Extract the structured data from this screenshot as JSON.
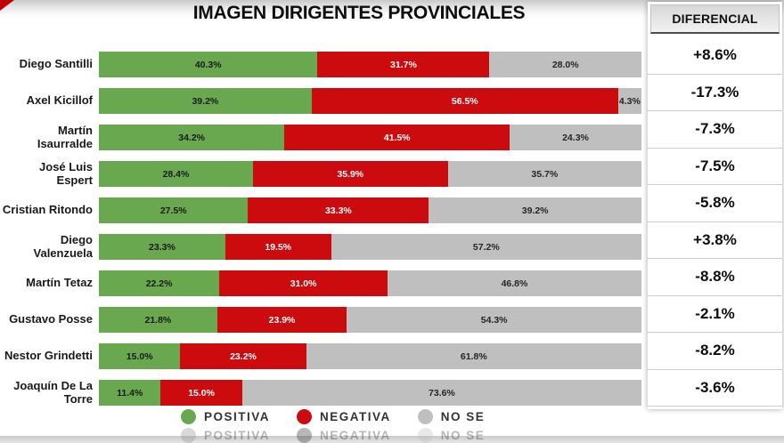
{
  "title": "IMAGEN DIRIGENTES PROVINCIALES",
  "diferencial_header": "DIFERENCIAL",
  "colors": {
    "positiva": "#6aa84f",
    "negativa": "#cc0b0e",
    "no_se": "#bfbfbf"
  },
  "legend": [
    {
      "label": "POSITIVA",
      "key": "positiva"
    },
    {
      "label": "NEGATIVA",
      "key": "negativa"
    },
    {
      "label": "NO SE",
      "key": "no_se"
    }
  ],
  "chart_data": {
    "type": "bar",
    "orientation": "horizontal",
    "stacked": true,
    "unit": "%",
    "xlim": [
      0,
      100
    ],
    "title": "IMAGEN DIRIGENTES PROVINCIALES",
    "categories": [
      "Diego Santilli",
      "Axel Kicillof",
      "Martín Isaurralde",
      "José Luis Espert",
      "Cristian Ritondo",
      "Diego Valenzuela",
      "Martín Tetaz",
      "Gustavo Posse",
      "Nestor Grindetti",
      "Joaquín De La Torre"
    ],
    "series": [
      {
        "name": "POSITIVA",
        "color": "#6aa84f",
        "label_color": "#1a1a1a",
        "values": [
          40.3,
          39.2,
          34.2,
          28.4,
          27.5,
          23.3,
          22.2,
          21.8,
          15.0,
          11.4
        ]
      },
      {
        "name": "NEGATIVA",
        "color": "#cc0b0e",
        "label_color": "#ffffff",
        "values": [
          31.7,
          56.5,
          41.5,
          35.9,
          33.3,
          19.5,
          31.0,
          23.9,
          23.2,
          15.0
        ]
      },
      {
        "name": "NO SE",
        "color": "#bfbfbf",
        "label_color": "#262626",
        "values": [
          28.0,
          4.3,
          24.3,
          35.7,
          39.2,
          57.2,
          46.8,
          54.3,
          61.8,
          73.6
        ]
      }
    ],
    "diferencial": [
      "+8.6%",
      "-17.3%",
      "-7.3%",
      "-7.5%",
      "-5.8%",
      "+3.8%",
      "-8.8%",
      "-2.1%",
      "-8.2%",
      "-3.6%"
    ]
  }
}
